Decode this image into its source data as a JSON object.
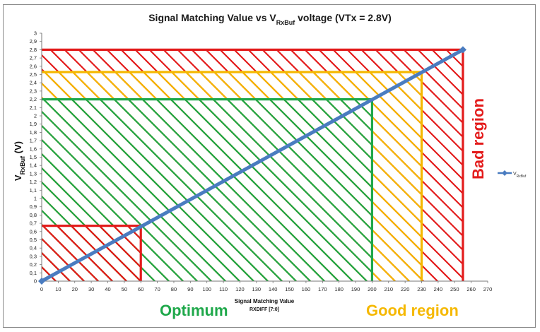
{
  "chart_data": {
    "type": "line",
    "title": {
      "main": "Signal Matching Value vs V",
      "sub": "RxBuf",
      "tail": " voltage (VTx = 2.8V)"
    },
    "xlabel": {
      "line1": "Signal Matching Value",
      "line2": "RXDIFF [7:0]"
    },
    "ylabel": {
      "main": "V",
      "sub": "RxBuf",
      "tail": " (V)"
    },
    "xlim": [
      0,
      270
    ],
    "ylim": [
      0,
      3
    ],
    "x_ticks": [
      "0",
      "10",
      "20",
      "30",
      "40",
      "50",
      "60",
      "70",
      "80",
      "90",
      "100",
      "110",
      "120",
      "130",
      "140",
      "150",
      "160",
      "170",
      "180",
      "190",
      "200",
      "210",
      "220",
      "230",
      "240",
      "250",
      "260",
      "270"
    ],
    "y_ticks": [
      "0",
      "0,1",
      "0,2",
      "0,3",
      "0,4",
      "0,5",
      "0,6",
      "0,7",
      "0,8",
      "0,9",
      "1",
      "1,1",
      "1,2",
      "1,3",
      "1,4",
      "1,5",
      "1,6",
      "1,7",
      "1,8",
      "1,9",
      "2",
      "2,1",
      "2,2",
      "2,3",
      "2,4",
      "2,5",
      "2,6",
      "2,7",
      "2,8",
      "2,9",
      "3"
    ],
    "series": [
      {
        "name": "V",
        "name_sub": "RxBuf",
        "color": "#4a7cc0",
        "x": [
          0,
          255
        ],
        "y": [
          0,
          2.8
        ]
      }
    ],
    "regions": [
      {
        "name": "Bad region",
        "color": "#e31b1b",
        "x_max": 255,
        "y_max": 2.8
      },
      {
        "name": "Good region",
        "color": "#f5b800",
        "x_max": 230,
        "y_max": 2.53
      },
      {
        "name": "Optimum",
        "color": "#1ea84a",
        "x_max": 200,
        "y_max": 2.2
      },
      {
        "name": "",
        "color": "#e31b1b",
        "x_max": 60,
        "y_max": 0.67
      }
    ],
    "grid": false,
    "legend": "right"
  }
}
